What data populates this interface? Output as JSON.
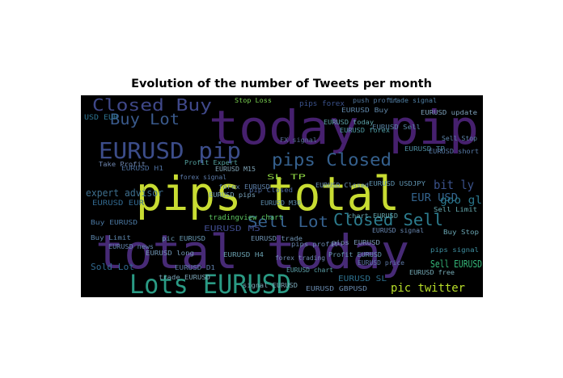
{
  "figure": {
    "title": "Evolution of the number of Tweets per month",
    "background": "#000000"
  },
  "chart_data": {
    "type": "wordcloud",
    "title": "Evolution of the number of Tweets per month",
    "words": [
      {
        "text": "today pip",
        "color": "#46206e"
      },
      {
        "text": "pips total",
        "color": "#c8dc32"
      },
      {
        "text": "total today",
        "color": "#472a76"
      },
      {
        "text": "Lots EURUSD",
        "color": "#2a9a84"
      },
      {
        "text": "Closed Buy",
        "color": "#3f4889"
      },
      {
        "text": "Buy Lot",
        "color": "#3a5a8c"
      },
      {
        "text": "EURUSD pip",
        "color": "#3c4d8a"
      },
      {
        "text": "pips Closed",
        "color": "#35608d"
      },
      {
        "text": "Closed Sell",
        "color": "#2c7c8e"
      },
      {
        "text": "Sell Lot",
        "color": "#36618e"
      },
      {
        "text": "pic twitter",
        "color": "#b8de29"
      },
      {
        "text": "bit ly",
        "color": "#3b528b"
      },
      {
        "text": "EUR USD",
        "color": "#33638d"
      },
      {
        "text": "goo gl",
        "color": "#2a788e"
      },
      {
        "text": "expert advisor",
        "color": "#3e6f8e"
      },
      {
        "text": "tradingview chart",
        "color": "#5ec962"
      },
      {
        "text": "Sold Lot",
        "color": "#31688e"
      },
      {
        "text": "Sell EURUSD",
        "color": "#35b779"
      },
      {
        "text": "EURUSD SL",
        "color": "#2d708e"
      },
      {
        "text": "pips forex",
        "color": "#3b528b"
      },
      {
        "text": "SL TP",
        "color": "#8fd744"
      },
      {
        "text": "EURUSD M5",
        "color": "#3e4a89"
      },
      {
        "text": "EURUSD EUR",
        "color": "#31688e"
      },
      {
        "text": "USD EUR",
        "color": "#2c728e"
      },
      {
        "text": "Stop Loss",
        "color": "#7ad151"
      },
      {
        "text": "FX signal",
        "color": "#5a6f9a"
      },
      {
        "text": "EURUSD Buy",
        "color": "#5f86a8"
      },
      {
        "text": "pips signal",
        "color": "#3f8fa0"
      },
      {
        "text": "EURUSD H1",
        "color": "#4b6c9a"
      },
      {
        "text": "push profit",
        "color": "#52789e"
      },
      {
        "text": "trade signal",
        "color": "#4f7fa3"
      },
      {
        "text": "EURUSD Sell",
        "color": "#5a86a6"
      },
      {
        "text": "chart EURUSD",
        "color": "#62a0a6"
      },
      {
        "text": "pip Closed",
        "color": "#4d6aa0"
      },
      {
        "text": "EURUSD GBPUSD",
        "color": "#6b8cb0"
      },
      {
        "text": "Buy EURUSD",
        "color": "#4c79a3"
      },
      {
        "text": "Profit Expert",
        "color": "#56a3a0"
      },
      {
        "text": "pic EURUSD",
        "color": "#6a9bb4"
      },
      {
        "text": "forex signal",
        "color": "#5c7aa8"
      },
      {
        "text": "EURUSD USDJPY",
        "color": "#5f92ae"
      },
      {
        "text": "signal EURUSD",
        "color": "#7aa8b8"
      },
      {
        "text": "pips profit",
        "color": "#6a88b0"
      },
      {
        "text": "EURUSD forex",
        "color": "#4e9aa2"
      },
      {
        "text": "EURUSD trade",
        "color": "#6f93b2"
      },
      {
        "text": "Buy Stop",
        "color": "#6aa6b2"
      },
      {
        "text": "Sell Stop",
        "color": "#5c84aa"
      },
      {
        "text": "EURUSD update",
        "color": "#7c9fb8"
      },
      {
        "text": "forex EURUSD",
        "color": "#5d7fa6"
      },
      {
        "text": "EURUSD Closed",
        "color": "#6a8fb3"
      },
      {
        "text": "EURUSD TP",
        "color": "#4f8da2"
      },
      {
        "text": "pips EURUSD",
        "color": "#7895b4"
      },
      {
        "text": "EURUSD chart",
        "color": "#5b9ea6"
      },
      {
        "text": "Take Profit",
        "color": "#6f87b1"
      },
      {
        "text": "trade EURUSD",
        "color": "#7ca4b6"
      },
      {
        "text": "EURUSD D1",
        "color": "#5e7ea8"
      },
      {
        "text": "EURUSD H4",
        "color": "#6ba1b0"
      },
      {
        "text": "EURUSD short",
        "color": "#587aa6"
      },
      {
        "text": "EURUSD long",
        "color": "#7196b4"
      },
      {
        "text": "Sell Limit",
        "color": "#66aab0"
      },
      {
        "text": "Buy Limit",
        "color": "#5c85ab"
      },
      {
        "text": "EURUSD pips",
        "color": "#77a0b8"
      },
      {
        "text": "forex trading",
        "color": "#6f8ab0"
      },
      {
        "text": "EURUSD today",
        "color": "#5ea4aa"
      },
      {
        "text": "EURUSD signal",
        "color": "#6988b2"
      },
      {
        "text": "EURUSD M15",
        "color": "#7fa3b6"
      },
      {
        "text": "EURUSD M30",
        "color": "#5d8dad"
      },
      {
        "text": "Profit EURUSD",
        "color": "#6798b2"
      },
      {
        "text": "EURUSD price",
        "color": "#5d78a6"
      },
      {
        "text": "EURUSD free",
        "color": "#74a9b4"
      },
      {
        "text": "EURUSD news",
        "color": "#6384ad"
      }
    ]
  }
}
